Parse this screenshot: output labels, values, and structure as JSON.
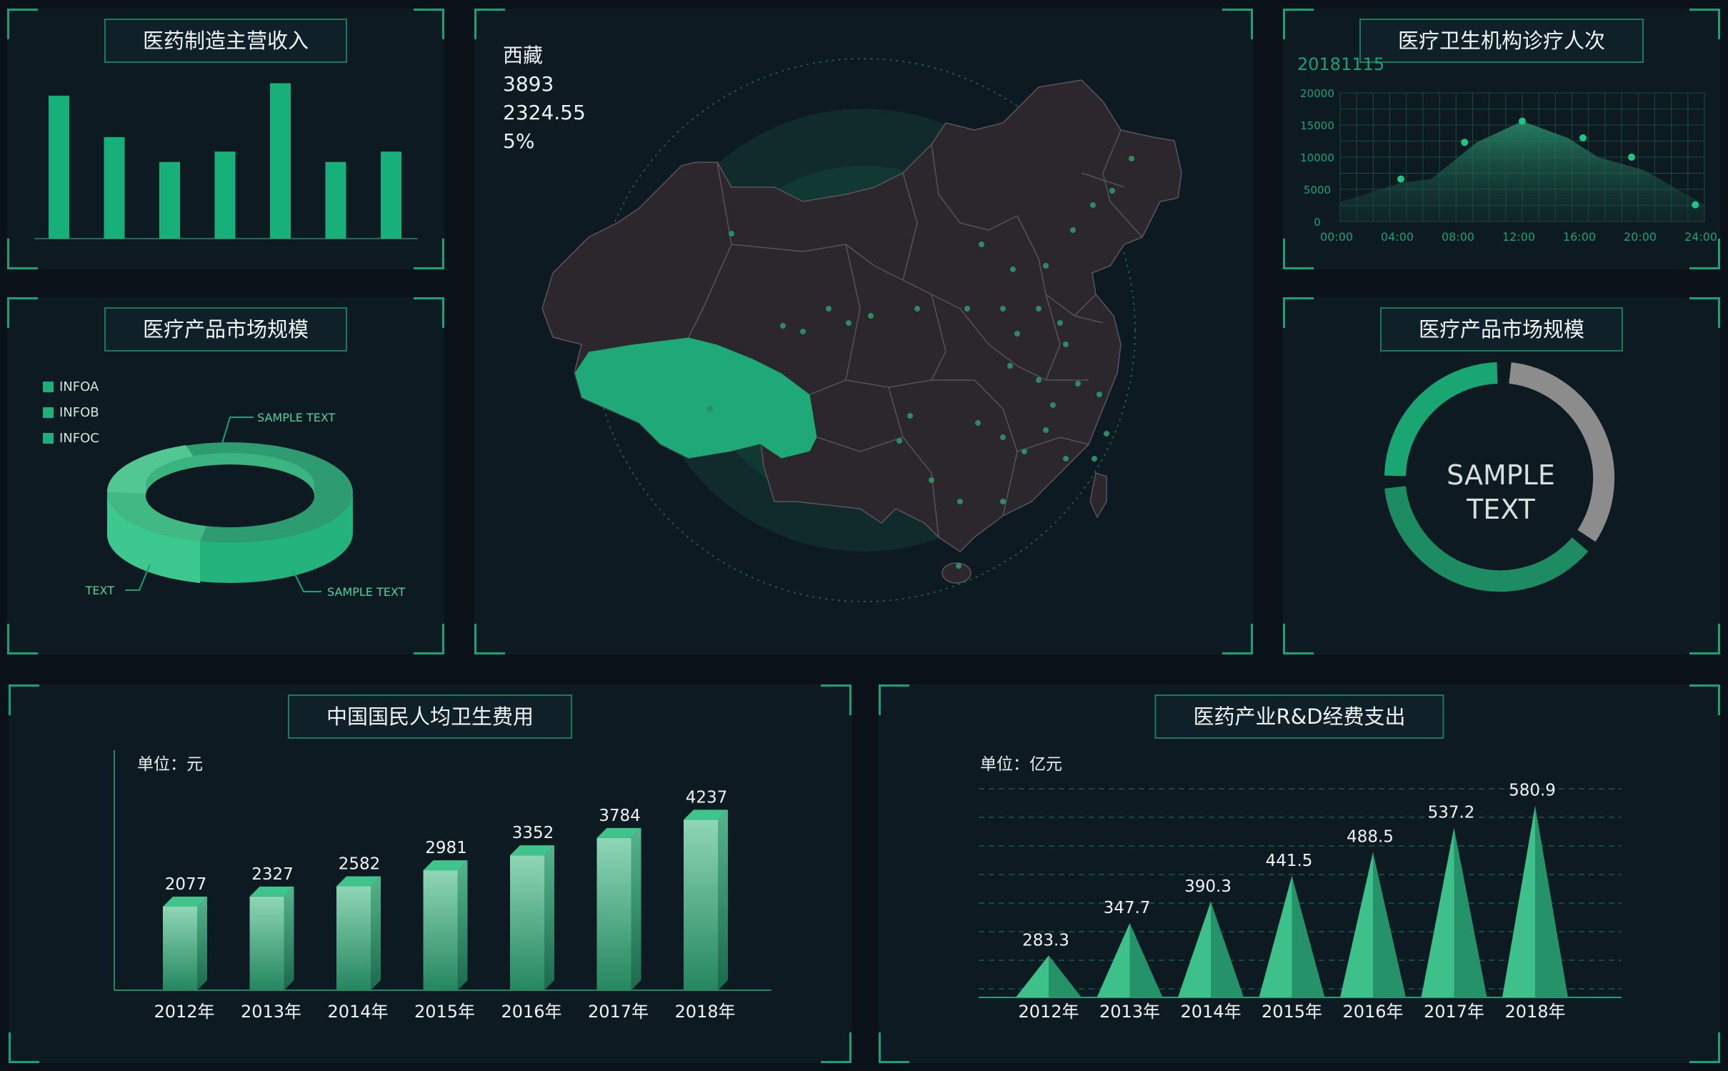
{
  "panels": {
    "manufacturing": {
      "title": "医药制造主营收入"
    },
    "market1": {
      "title": "医疗产品市场规模",
      "legend": [
        "INFOA",
        "INFOB",
        "INFOC"
      ],
      "labels": {
        "top": "SAMPLE TEXT",
        "left": "TEXT",
        "right": "SAMPLE TEXT"
      }
    },
    "map": {
      "region": "西藏",
      "value1": "3893",
      "value2": "2324.55",
      "value3": "5%"
    },
    "visits": {
      "title": "医疗卫生机构诊疗人次",
      "date": "20181115"
    },
    "market2": {
      "title": "医疗产品市场规模",
      "center_line1": "SAMPLE",
      "center_line2": "TEXT"
    },
    "health_cost": {
      "title": "中国国民人均卫生费用",
      "unit": "单位：元"
    },
    "rnd": {
      "title": "医药产业R&D经费支出",
      "unit": "单位：亿元"
    }
  },
  "colors": {
    "accent": "#1aa276",
    "bar": "#17b07a",
    "donut_green": "#1a9e6c",
    "donut_gray": "#8c8c8c",
    "map_land": "#2b272c",
    "map_highlight": "#1fa878"
  },
  "chart_data": [
    {
      "id": "manufacturing",
      "type": "bar",
      "values": [
        0.69,
        0.49,
        0.37,
        0.42,
        0.75,
        0.37,
        0.42
      ],
      "ylim": [
        0,
        0.8
      ]
    },
    {
      "id": "market1",
      "type": "pie",
      "legend": [
        "INFOA",
        "INFOB",
        "INFOC"
      ]
    },
    {
      "id": "visits",
      "type": "area",
      "x": [
        "00:00",
        "04:00",
        "08:00",
        "12:00",
        "16:00",
        "20:00",
        "24:00"
      ],
      "x_points": [
        0,
        4,
        6,
        9,
        12,
        15,
        17,
        20,
        24
      ],
      "y_points": [
        3000,
        6000,
        6600,
        12300,
        15600,
        13000,
        10000,
        8000,
        2600
      ],
      "markers": [
        4,
        8.2,
        12,
        16,
        19.2,
        23.4
      ],
      "marker_values": [
        6600,
        12300,
        15600,
        13000,
        10000,
        2600
      ],
      "yticks": [
        0,
        5000,
        10000,
        15000,
        20000
      ],
      "ylim": [
        0,
        20000
      ],
      "grid": true
    },
    {
      "id": "market2",
      "type": "pie",
      "center": "SAMPLE TEXT"
    },
    {
      "id": "health_cost",
      "type": "bar",
      "categories": [
        "2012年",
        "2013年",
        "2014年",
        "2015年",
        "2016年",
        "2017年",
        "2018年"
      ],
      "values": [
        2077,
        2327,
        2582,
        2981,
        3352,
        3784,
        4237
      ],
      "labels": [
        "2077",
        "2327",
        "2582",
        "2981",
        "3352",
        "3784",
        "4237"
      ],
      "ylim": [
        0,
        6000
      ]
    },
    {
      "id": "rnd",
      "type": "bar",
      "categories": [
        "2012年",
        "2013年",
        "2014年",
        "2015年",
        "2016年",
        "2017年",
        "2018年"
      ],
      "values": [
        283.3,
        347.7,
        390.3,
        441.5,
        488.5,
        537.2,
        580.9
      ],
      "labels": [
        "283.3",
        "347.7",
        "390.3",
        "441.5",
        "488.5",
        "537.2",
        "580.9"
      ],
      "ylim": [
        250,
        620
      ],
      "grid": true
    }
  ]
}
